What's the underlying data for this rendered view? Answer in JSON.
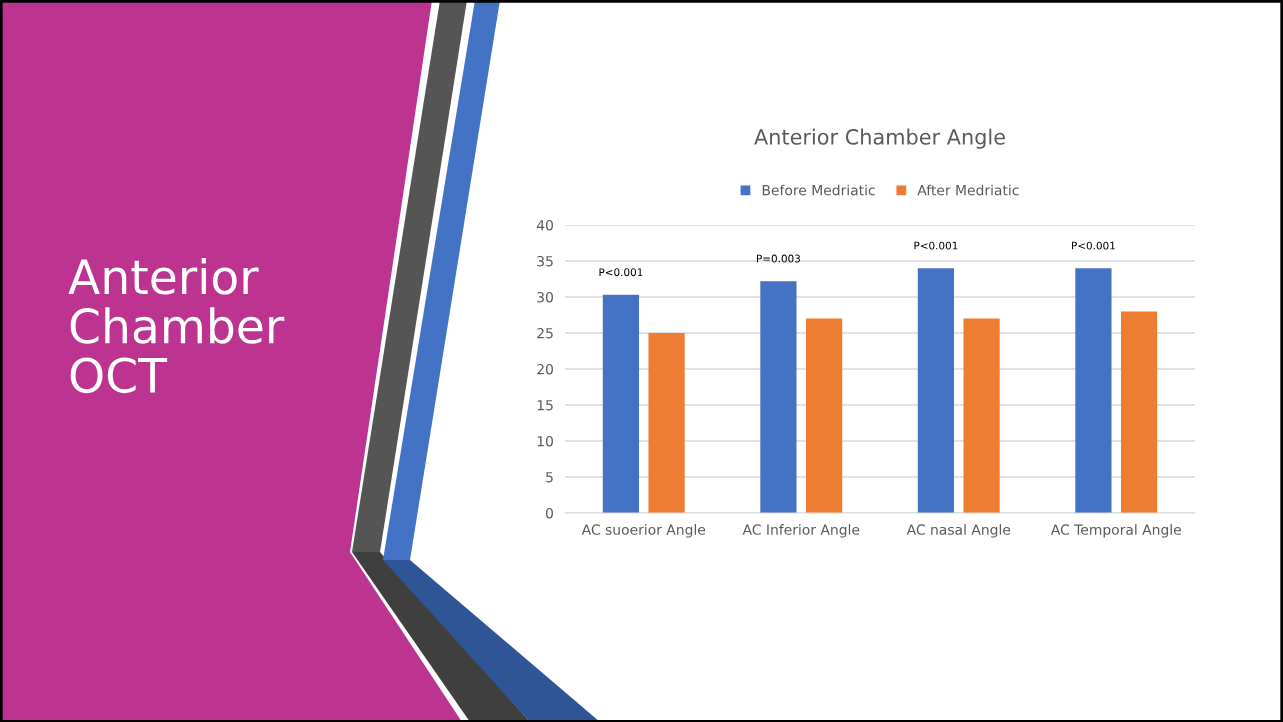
{
  "chart_data": {
    "type": "bar",
    "title": "Anterior Chamber Angle",
    "categories": [
      "AC suoerior Angle",
      "AC Inferior Angle",
      "AC nasal Angle",
      "AC Temporal Angle"
    ],
    "series": [
      {
        "name": "Before Medriatic",
        "color": "#4472c4",
        "values": [
          30.3,
          32.2,
          34,
          34
        ]
      },
      {
        "name": "After Medriatic",
        "color": "#ed7d31",
        "values": [
          25,
          27,
          27,
          28
        ]
      }
    ],
    "ylim": [
      0,
      40
    ],
    "yticks": [
      0,
      5,
      10,
      15,
      20,
      25,
      30,
      35,
      40
    ],
    "grid": "y",
    "legend": "top",
    "annotations": [
      "Anterior\nChamber\nOCT",
      "P<0.001",
      "P=0.003",
      "P<0.001",
      "P<0.001"
    ]
  }
}
